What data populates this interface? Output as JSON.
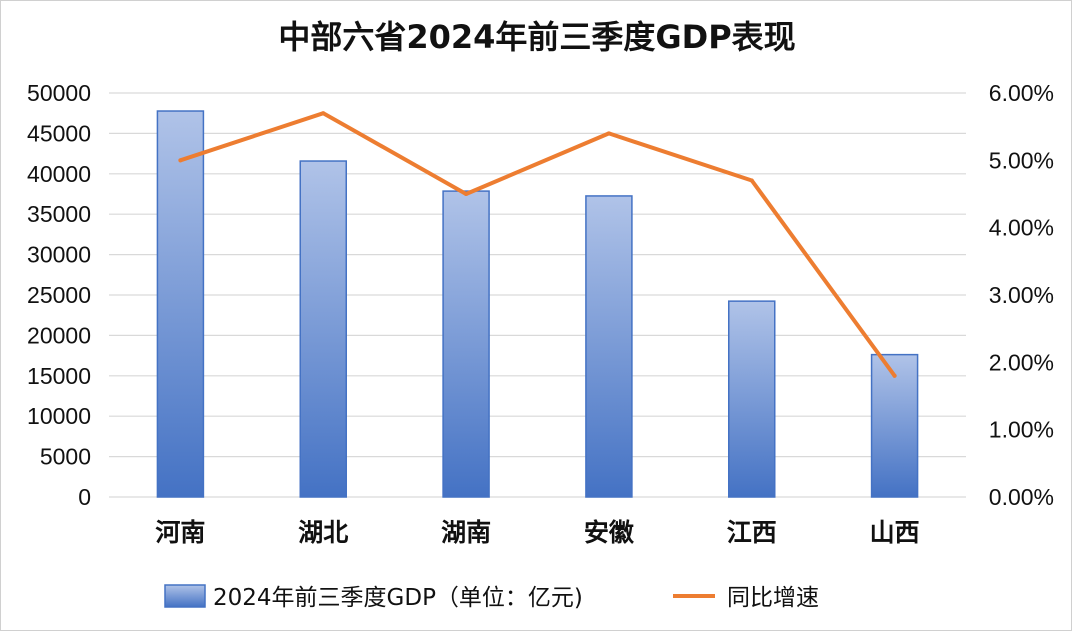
{
  "chart_data": {
    "type": "bar",
    "title": "中部六省2024年前三季度GDP表现",
    "categories": [
      "河南",
      "湖北",
      "湖南",
      "安徽",
      "江西",
      "山西"
    ],
    "series": [
      {
        "name": "2024年前三季度GDP（单位：亿元)",
        "type": "bar",
        "axis": "left",
        "color": "#4472c4",
        "values": [
          47770,
          41580,
          37860,
          37260,
          24240,
          17620
        ]
      },
      {
        "name": "同比增速",
        "type": "line",
        "axis": "right",
        "color": "#ed7d31",
        "values": [
          5.0,
          5.7,
          4.5,
          5.4,
          4.7,
          1.8
        ]
      }
    ],
    "y_left": {
      "ylim": [
        0,
        50000
      ],
      "ticks": [
        "0",
        "5000",
        "10000",
        "15000",
        "20000",
        "25000",
        "30000",
        "35000",
        "40000",
        "45000",
        "50000"
      ]
    },
    "y_right": {
      "ylim": [
        0,
        6
      ],
      "ticks": [
        "0.00%",
        "1.00%",
        "2.00%",
        "3.00%",
        "4.00%",
        "5.00%",
        "6.00%"
      ]
    },
    "grid": true,
    "legend_position": "bottom"
  }
}
